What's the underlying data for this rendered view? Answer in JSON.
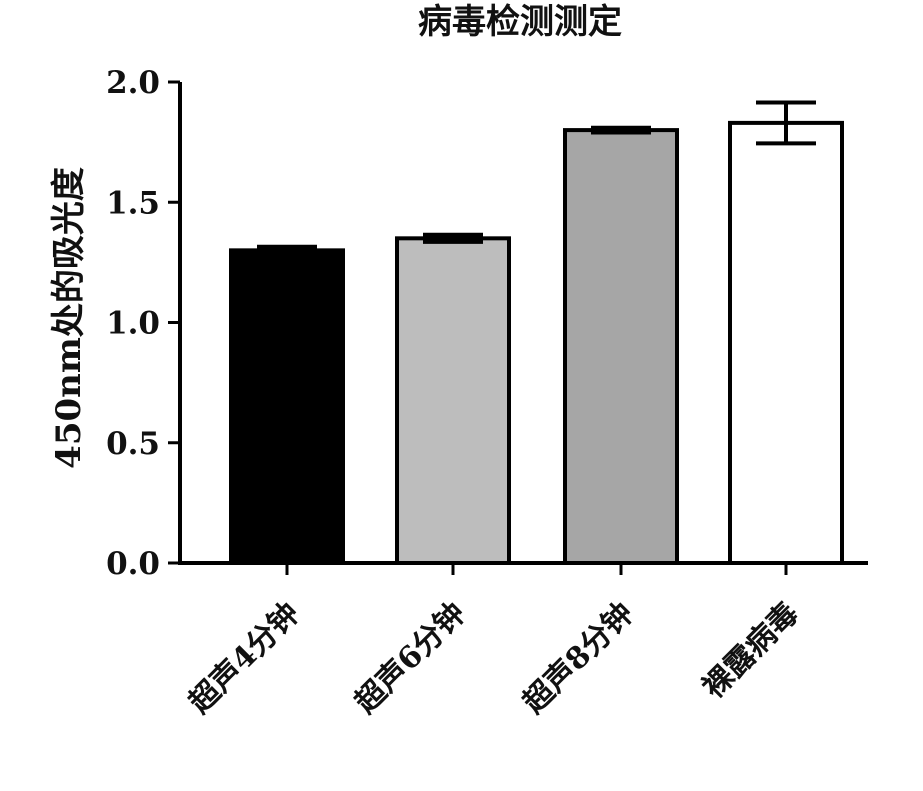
{
  "chart_data": {
    "type": "bar",
    "title": "病毒检测测定",
    "ylabel": "450nm处的吸光度",
    "xlabel": "",
    "categories": [
      "超声4分钟",
      "超声6分钟",
      "超声8分钟",
      "裸露病毒"
    ],
    "values": [
      1.3,
      1.35,
      1.8,
      1.83
    ],
    "errors": [
      0.015,
      0.015,
      0.01,
      0.085
    ],
    "ylim": [
      0,
      2.0
    ],
    "yticks": [
      "0.0",
      "0.5",
      "1.0",
      "1.5",
      "2.0"
    ],
    "grid": false,
    "legend": "none",
    "bar_fills": [
      "#000000",
      "#bdbdbd",
      "#a6a6a6",
      "#ffffff"
    ],
    "bar_stroke": "#000000"
  }
}
